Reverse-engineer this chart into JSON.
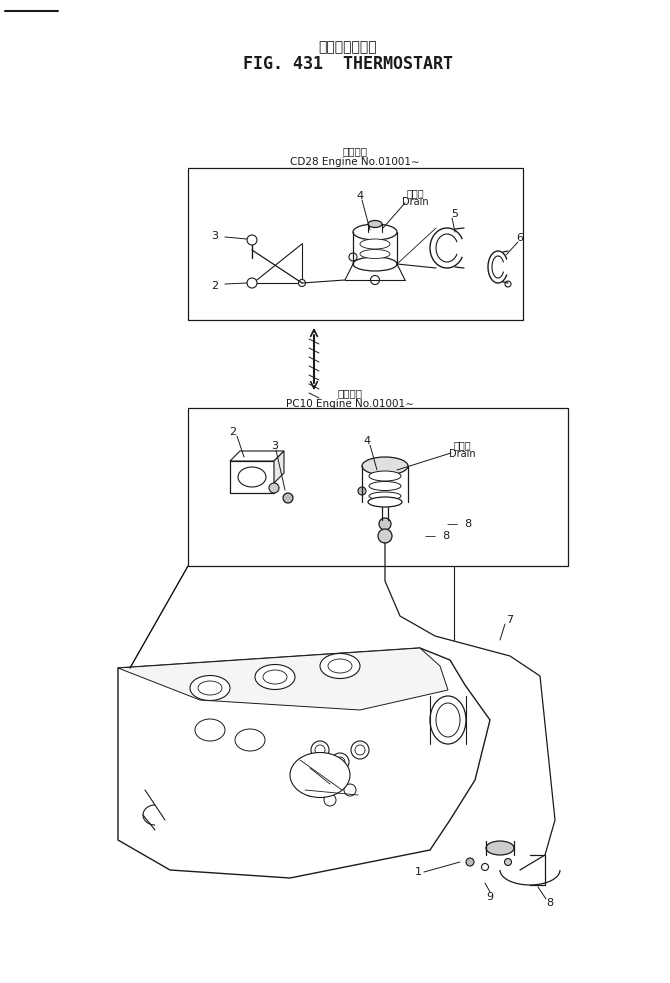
{
  "title_japanese": "サーモスタート",
  "title_english": "FIG. 431  THERMOSTART",
  "bg_color": "#ffffff",
  "line_color": "#000000",
  "box1_label_jp": "適用号機",
  "box1_label_en": "CD28 Engine No.01001∼",
  "box2_label_jp": "適用号機",
  "box2_label_en": "PC10 Engine No.01001∼",
  "drain_label_jp": "ドレン",
  "drain_label_en": "Drain",
  "figsize": [
    6.7,
    9.83
  ],
  "dpi": 100
}
